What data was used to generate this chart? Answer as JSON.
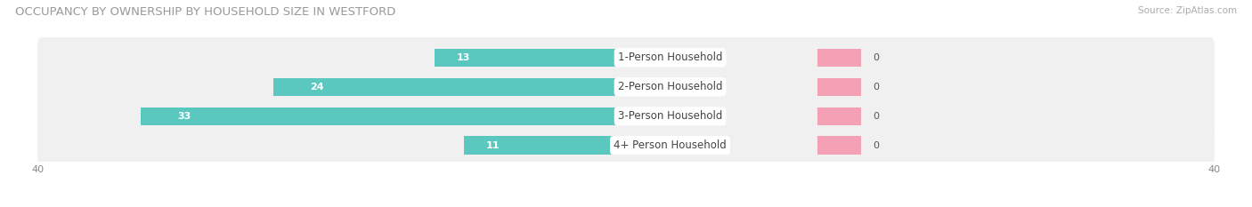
{
  "title": "OCCUPANCY BY OWNERSHIP BY HOUSEHOLD SIZE IN WESTFORD",
  "source": "Source: ZipAtlas.com",
  "categories": [
    "1-Person Household",
    "2-Person Household",
    "3-Person Household",
    "4+ Person Household"
  ],
  "owner_values": [
    13,
    24,
    33,
    11
  ],
  "renter_values": [
    0,
    0,
    0,
    0
  ],
  "renter_display": [
    3,
    3,
    3,
    3
  ],
  "owner_color": "#5BC8C0",
  "renter_color": "#F4A0B5",
  "row_bg_color": "#f0f0f0",
  "xlim": [
    -40,
    40
  ],
  "title_fontsize": 9.5,
  "source_fontsize": 7.5,
  "tick_fontsize": 8,
  "label_fontsize": 8.5,
  "value_fontsize": 8,
  "legend_fontsize": 9,
  "figsize": [
    14.06,
    2.33
  ],
  "dpi": 100
}
